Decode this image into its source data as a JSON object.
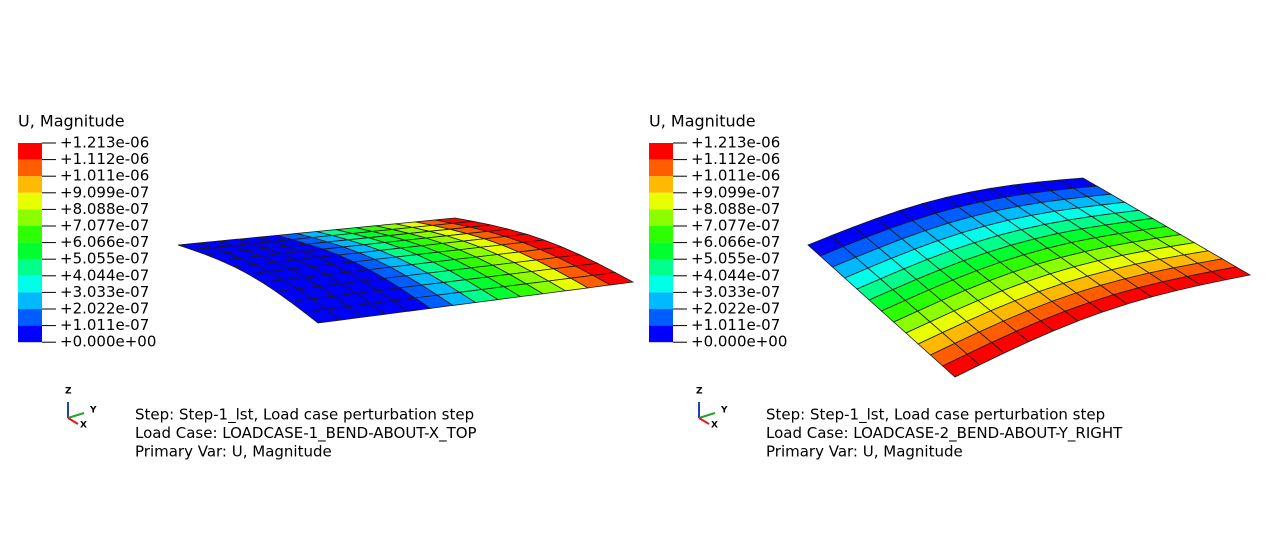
{
  "spectrum": [
    "#ff0000",
    "#ff5d00",
    "#ffb900",
    "#e8ff00",
    "#8bff00",
    "#2eff00",
    "#00ff2e",
    "#00ff8b",
    "#00ffe8",
    "#00b9ff",
    "#005dff",
    "#0000ff"
  ],
  "panels": [
    {
      "legend": {
        "title": "U, Magnitude",
        "labels": [
          "+1.213e-06",
          "+1.112e-06",
          "+1.011e-06",
          "+9.099e-07",
          "+8.088e-07",
          "+7.077e-07",
          "+6.066e-07",
          "+5.055e-07",
          "+4.044e-07",
          "+3.033e-07",
          "+2.022e-07",
          "+1.011e-07",
          "+0.000e+00"
        ]
      },
      "triad": {
        "z": "Z",
        "y": "Y",
        "x": "X"
      },
      "info": [
        "Step: Step-1_lst, Load case perturbation step",
        "Load Case: LOADCASE-1_BEND-ABOUT-X_TOP",
        "Primary Var: U, Magnitude"
      ]
    },
    {
      "legend": {
        "title": "U, Magnitude",
        "labels": [
          "+1.213e-06",
          "+1.112e-06",
          "+1.011e-06",
          "+9.099e-07",
          "+8.088e-07",
          "+7.077e-07",
          "+6.066e-07",
          "+5.055e-07",
          "+4.044e-07",
          "+3.033e-07",
          "+2.022e-07",
          "+1.011e-07",
          "+0.000e+00"
        ]
      },
      "triad": {
        "z": "Z",
        "y": "Y",
        "x": "X"
      },
      "info": [
        "Step: Step-1_lst, Load case perturbation step",
        "Load Case: LOADCASE-2_BEND-ABOUT-Y_RIGHT",
        "Primary Var: U, Magnitude"
      ]
    }
  ]
}
